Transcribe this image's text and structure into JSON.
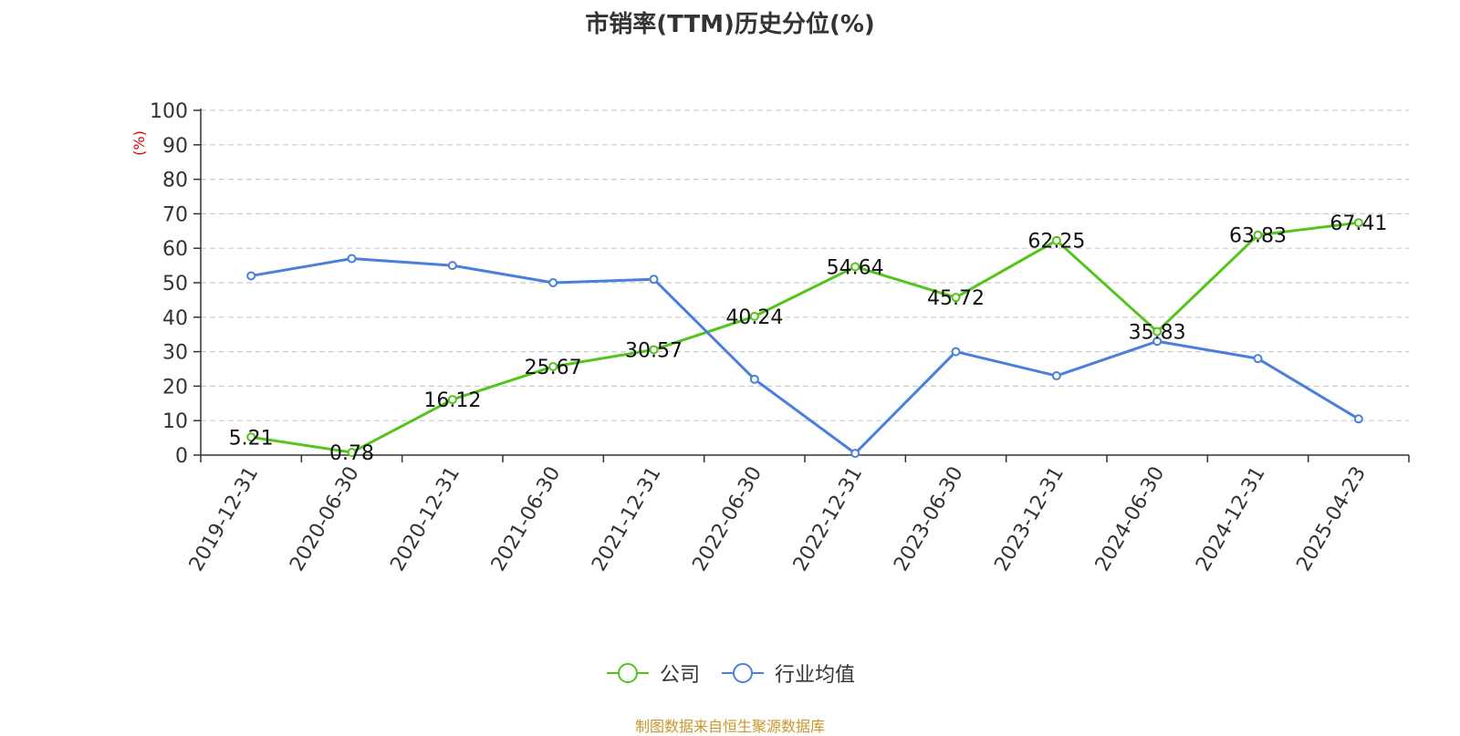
{
  "chart_data": {
    "type": "line",
    "title": "市销率(TTM)历史分位(%)",
    "ylabel": "(%)",
    "xlabel": "",
    "ylim": [
      0,
      100
    ],
    "yticks": [
      0,
      10,
      20,
      30,
      40,
      50,
      60,
      70,
      80,
      90,
      100
    ],
    "grid": "horizontal dashed",
    "legend_position": "bottom",
    "categories": [
      "2019-12-31",
      "2020-06-30",
      "2020-12-31",
      "2021-06-30",
      "2021-12-31",
      "2022-06-30",
      "2022-12-31",
      "2023-06-30",
      "2023-12-31",
      "2024-06-30",
      "2024-12-31",
      "2025-04-23"
    ],
    "series": [
      {
        "name": "公司",
        "color": "#52c41a",
        "values": [
          5.21,
          0.78,
          16.12,
          25.67,
          30.57,
          40.24,
          54.64,
          45.72,
          62.25,
          35.83,
          63.83,
          67.41
        ],
        "labels": [
          "5.21",
          "0.78",
          "16.12",
          "25.67",
          "30.57",
          "40.24",
          "54.64",
          "45.72",
          "62.25",
          "35.83",
          "63.83",
          "67.41"
        ]
      },
      {
        "name": "行业均值",
        "color": "#4a7fdc",
        "values": [
          52,
          57,
          55,
          50,
          51,
          22,
          0.5,
          30,
          23,
          33,
          28,
          10.5
        ]
      }
    ]
  },
  "source_note": "制图数据来自恒生聚源数据库"
}
